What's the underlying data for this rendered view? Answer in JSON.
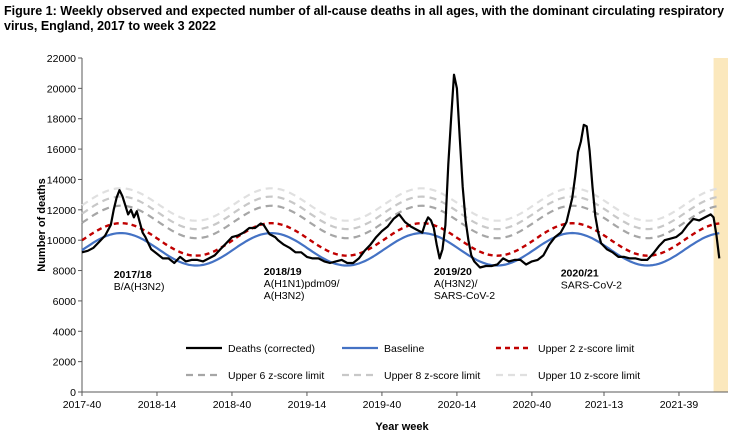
{
  "title": "Figure 1: Weekly observed and expected number of all-cause deaths in all ages, with the dominant circulating respiratory virus, England, 2017 to week 3 2022",
  "chart_data": {
    "type": "line",
    "xlabel": "Year week",
    "ylabel": "Number of deaths",
    "ylim": [
      0,
      22000
    ],
    "yticks": [
      0,
      2000,
      4000,
      6000,
      8000,
      10000,
      12000,
      14000,
      16000,
      18000,
      20000,
      22000
    ],
    "xlim_weeks": [
      0,
      224
    ],
    "xticks": [
      {
        "label": "2017-40",
        "week": 0
      },
      {
        "label": "2018-14",
        "week": 26
      },
      {
        "label": "2018-40",
        "week": 52
      },
      {
        "label": "2019-14",
        "week": 78
      },
      {
        "label": "2019-40",
        "week": 104
      },
      {
        "label": "2020-14",
        "week": 130
      },
      {
        "label": "2020-40",
        "week": 156
      },
      {
        "label": "2021-13",
        "week": 181
      },
      {
        "label": "2021-39",
        "week": 207
      }
    ],
    "grid": false,
    "legend_placement": "bottom",
    "highlight_band": {
      "from_week": 219,
      "to_week": 224,
      "color": "#fbe8bd"
    },
    "annotations": [
      {
        "id": "ann-2017-18",
        "week": 11,
        "y": 7500,
        "lines": [
          "2017/18",
          "B/A(H3N2)"
        ]
      },
      {
        "id": "ann-2018-19",
        "week": 63,
        "y": 7700,
        "lines": [
          "2018/19",
          "A(H1N1)pdm09/",
          "A(H3N2)"
        ]
      },
      {
        "id": "ann-2019-20",
        "week": 122,
        "y": 7700,
        "lines": [
          "2019/20",
          "A(H3N2)/",
          "SARS-CoV-2"
        ]
      },
      {
        "id": "ann-2020-21",
        "week": 166,
        "y": 7600,
        "lines": [
          "2020/21",
          "SARS-CoV-2"
        ]
      }
    ],
    "baseline": {
      "period": 52.18,
      "mid": 9400,
      "amp": 1070,
      "peak_week": 13.5
    },
    "series": [
      {
        "name": "Deaths (corrected)",
        "key": "deaths",
        "color": "#000000",
        "dash": "",
        "width": 2.2,
        "x": [
          0,
          2,
          4,
          6,
          8,
          10,
          11,
          12,
          13,
          14,
          15,
          16,
          17,
          18,
          19,
          20,
          21,
          22,
          24,
          26,
          28,
          30,
          32,
          34,
          36,
          38,
          40,
          42,
          44,
          46,
          48,
          50,
          52,
          54,
          56,
          58,
          60,
          62,
          63,
          64,
          65,
          66,
          67,
          68,
          70,
          72,
          74,
          76,
          78,
          80,
          82,
          84,
          86,
          88,
          90,
          92,
          94,
          96,
          98,
          100,
          102,
          104,
          106,
          108,
          110,
          112,
          114,
          116,
          118,
          119,
          120,
          121,
          122,
          123,
          124,
          125,
          126,
          127,
          128,
          129,
          130,
          131,
          132,
          133,
          134,
          135,
          136,
          138,
          140,
          142,
          144,
          146,
          148,
          150,
          152,
          154,
          156,
          158,
          160,
          162,
          164,
          166,
          168,
          170,
          171,
          172,
          173,
          174,
          175,
          176,
          177,
          178,
          179,
          180,
          182,
          184,
          186,
          188,
          190,
          192,
          194,
          196,
          198,
          200,
          202,
          204,
          206,
          208,
          210,
          212,
          214,
          216,
          218,
          219,
          220,
          221
        ],
        "y": [
          9200,
          9300,
          9500,
          9900,
          10300,
          11000,
          12000,
          12800,
          13300,
          12900,
          12300,
          11700,
          12000,
          11500,
          11900,
          11200,
          10500,
          10200,
          9400,
          9100,
          8800,
          8800,
          8500,
          8900,
          8600,
          8700,
          8700,
          8600,
          8800,
          9000,
          9400,
          9800,
          10200,
          10300,
          10500,
          10800,
          10800,
          11100,
          11000,
          10700,
          10400,
          10300,
          10200,
          10000,
          9700,
          9500,
          9200,
          9200,
          8900,
          8800,
          8800,
          8600,
          8500,
          8600,
          8700,
          8500,
          8500,
          8800,
          9300,
          9700,
          10200,
          10600,
          10900,
          11400,
          11700,
          11200,
          10900,
          10700,
          10500,
          11100,
          11500,
          11300,
          10800,
          9700,
          8800,
          9400,
          11000,
          15000,
          18000,
          20900,
          20000,
          16700,
          13500,
          11300,
          10000,
          9000,
          8600,
          8200,
          8300,
          8300,
          8400,
          8800,
          8600,
          8700,
          8700,
          8400,
          8600,
          8700,
          9000,
          9700,
          10200,
          10500,
          11200,
          12800,
          14200,
          15800,
          16500,
          17600,
          17500,
          15900,
          13500,
          11600,
          10500,
          9800,
          9400,
          9200,
          8900,
          8900,
          8800,
          8800,
          8700,
          8700,
          9100,
          9600,
          10000,
          10100,
          10200,
          10500,
          11000,
          11400,
          11300,
          11500,
          11700,
          11500,
          10300,
          8800
        ]
      },
      {
        "name": "Baseline",
        "key": "baseline",
        "color": "#4472c4",
        "dash": "",
        "width": 2.2
      },
      {
        "name": "Upper 2 z-score limit",
        "key": "z2",
        "offset": 650,
        "color": "#c00000",
        "dash": "5,4",
        "width": 2.4
      },
      {
        "name": "Upper 6 z-score limit",
        "key": "z6",
        "offset": 1800,
        "color": "#a6a6a6",
        "dash": "7,5",
        "width": 2.2
      },
      {
        "name": "Upper 8 z-score limit",
        "key": "z8",
        "offset": 2400,
        "color": "#c8c8c8",
        "dash": "7,5",
        "width": 2.2
      },
      {
        "name": "Upper 10 z-score limit",
        "key": "z10",
        "offset": 2950,
        "color": "#e0e0e0",
        "dash": "7,5",
        "width": 2.2
      }
    ]
  }
}
